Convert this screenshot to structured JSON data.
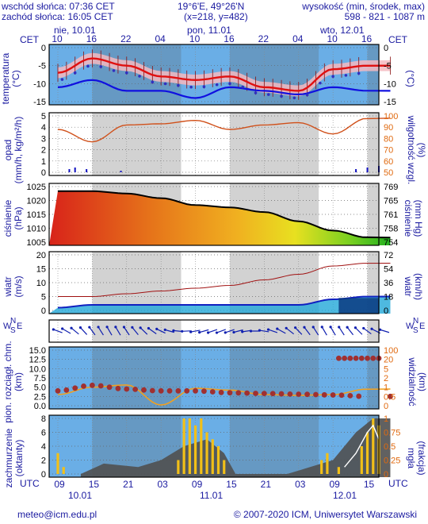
{
  "header": {
    "sunrise": "wschód słońca: 07:36 CET",
    "sunset": "zachód słońca: 16:05 CET",
    "coords": "19°6'E, 49°26'N",
    "grid": "(x=218, y=482)",
    "alt_label": "wysokość (min, środek, max)",
    "alt_values": "598 - 821 - 1087 m"
  },
  "time_axis": {
    "tz_top": "CET",
    "tz_bottom": "UTC",
    "days_top": [
      "nie, 10.01",
      "pon, 11.01",
      "wto, 12.01"
    ],
    "hours_top": [
      "10",
      "16",
      "22",
      "04",
      "10",
      "16",
      "22",
      "04",
      "10",
      "16"
    ],
    "hours_bottom": [
      "09",
      "15",
      "21",
      "03",
      "09",
      "15",
      "21",
      "03",
      "09",
      "15"
    ],
    "days_bottom": [
      "10.01",
      "11.01",
      "12.01"
    ]
  },
  "panels": {
    "temperature": {
      "label": "temperatura\n(°C)",
      "right_label": "(°C)",
      "ticks": [
        "0",
        "-5",
        "-10",
        "-15"
      ]
    },
    "precip": {
      "label": "opad\n(mm/h, kg/m²/h)",
      "right_label": "(%)\nwilgotność wzgl.",
      "left_ticks": [
        "5",
        "4",
        "3",
        "2",
        "1",
        "0"
      ],
      "right_ticks": [
        "100",
        "90",
        "80",
        "70",
        "60",
        "50"
      ]
    },
    "pressure": {
      "label": "ciśnienie\n(hPa)",
      "right_label": "(mm Hg)\nciśnienie",
      "left_ticks": [
        "1025",
        "1020",
        "1015",
        "1010",
        "1005"
      ],
      "right_ticks": [
        "769",
        "765",
        "761",
        "758",
        "754"
      ]
    },
    "wind": {
      "label": "wiatr\n(m/s)",
      "right_label": "(km/h)\nwiatr",
      "left_ticks": [
        "20",
        "15",
        "10",
        "5",
        "0"
      ],
      "right_ticks": [
        "72",
        "54",
        "36",
        "18",
        "0"
      ]
    },
    "wind_dir": {
      "left_label": "W",
      "left_label2": "S",
      "top_label": "N",
      "right_label": "E"
    },
    "visibility": {
      "label": "pion. rozciągł. chm.\n(km)",
      "right_label": "(km)\nwidzialność",
      "left_ticks": [
        "15.0",
        "12.5",
        "10.0",
        "7.5",
        "5.0",
        "2.5",
        "0.0"
      ],
      "right_ticks": [
        "100",
        "20",
        "5",
        "2",
        "1",
        "0.5",
        "0"
      ]
    },
    "clouds": {
      "label": "zachmurzenie\n(oktanty)",
      "right_label": "(frakcja)\nmgła",
      "left_ticks": [
        "8",
        "6",
        "4",
        "2",
        "0"
      ],
      "right_ticks": [
        "1",
        "0.75",
        "0.5",
        "0.25",
        "0"
      ]
    }
  },
  "footer": {
    "email": "meteo@icm.edu.pl",
    "copyright": "© 2007-2020 ICM, Uniwersytet Warszawski"
  },
  "colors": {
    "sky": "#6aaee6",
    "gray": "#d2d2d2",
    "text": "#1a1aa0",
    "temp": "#e01010",
    "dew": "#1010e0",
    "bar": "#f2c018"
  },
  "chart_data": [
    {
      "type": "line",
      "title": "temperatura",
      "x_hours_utc": [
        0,
        6,
        12,
        18,
        24,
        30,
        36,
        42,
        48,
        54
      ],
      "series": [
        {
          "values": [
            -7,
            -3,
            -5,
            -8,
            -9,
            -8,
            -11,
            -12,
            -6,
            -5
          ]
        },
        {
          "values": [
            -11,
            -9,
            -12,
            -12,
            -14,
            -11,
            -12,
            -13,
            -11,
            -12
          ]
        }
      ],
      "ylim": [
        -15,
        0
      ]
    },
    {
      "type": "line",
      "title": "wilgotność wzgl.",
      "series": [
        {
          "values": [
            88,
            77,
            92,
            93,
            96,
            88,
            92,
            94,
            84,
            98
          ]
        }
      ],
      "ylim": [
        50,
        100
      ]
    },
    {
      "type": "area",
      "title": "ciśnienie",
      "series": [
        {
          "values": [
            1025,
            1025,
            1024,
            1022,
            1019,
            1018,
            1016,
            1012,
            1008,
            1005
          ]
        }
      ],
      "ylim": [
        1003,
        1027
      ]
    },
    {
      "type": "line",
      "title": "wiatr",
      "series": [
        {
          "values": [
            1,
            2,
            2,
            2,
            2,
            2,
            2,
            2,
            4,
            5
          ]
        },
        {
          "values": [
            5,
            5,
            6,
            7,
            8,
            9,
            11,
            13,
            16,
            17
          ]
        }
      ],
      "ylim": [
        0,
        20
      ]
    },
    {
      "type": "line",
      "title": "widzialność",
      "series": [
        {
          "values": [
            4,
            5.5,
            4.5,
            4,
            4,
            3.5,
            3.3,
            3.1,
            2.9,
            2.5
          ]
        },
        {
          "values": [
            3,
            5,
            5.6,
            0.2,
            4.7,
            4.2,
            3,
            2.8,
            3,
            4.5
          ]
        }
      ],
      "ylim": [
        0,
        15
      ]
    },
    {
      "type": "bar",
      "title": "zachmurzenie",
      "series": [
        {
          "values": [
            1,
            2,
            0,
            8,
            8,
            2,
            1,
            0,
            3,
            8
          ]
        }
      ],
      "ylim": [
        0,
        8
      ]
    }
  ]
}
